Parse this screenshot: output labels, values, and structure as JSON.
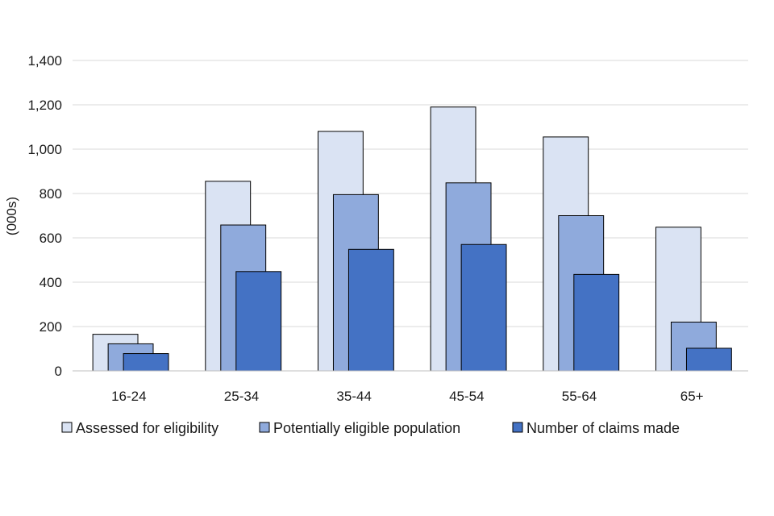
{
  "chart_data": {
    "type": "bar",
    "title": "",
    "xlabel": "",
    "ylabel": "(000s)",
    "ylim": [
      0,
      1400
    ],
    "yticks": [
      0,
      200,
      400,
      600,
      800,
      1000,
      1200,
      1400
    ],
    "ytick_labels": [
      "0",
      "200",
      "400",
      "600",
      "800",
      "1,000",
      "1,200",
      "1,400"
    ],
    "grid": true,
    "legend_position": "bottom",
    "categories": [
      "16-24",
      "25-34",
      "35-44",
      "45-54",
      "55-64",
      "65+"
    ],
    "series": [
      {
        "name": "Assessed for eligibility",
        "color": "#dae3f3",
        "values": [
          165,
          855,
          1080,
          1190,
          1055,
          648
        ]
      },
      {
        "name": "Potentially eligible population",
        "color": "#8faadc",
        "values": [
          122,
          658,
          795,
          848,
          700,
          220
        ]
      },
      {
        "name": "Number of claims made",
        "color": "#4472c4",
        "values": [
          78,
          448,
          548,
          570,
          435,
          102
        ]
      }
    ]
  }
}
